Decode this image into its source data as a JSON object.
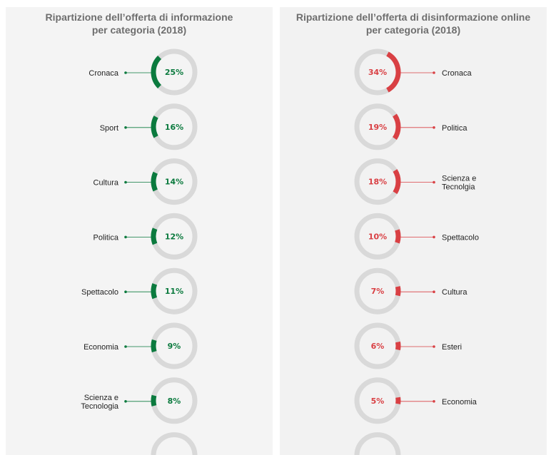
{
  "chart_data": [
    {
      "type": "donut",
      "title": "Ripartizione dell’offerta di informazione\nper categoria (2018)",
      "color": "#0b7a3e",
      "track_color": "#d9d9d9",
      "label_side": "left",
      "categories": [
        "Cronaca",
        "Sport",
        "Cultura",
        "Politica",
        "Spettacolo",
        "Economia",
        "Scienza e\nTecnologia"
      ],
      "values": [
        25,
        16,
        14,
        12,
        11,
        9,
        8
      ],
      "value_labels": [
        "25%",
        "16%",
        "14%",
        "12%",
        "11%",
        "9%",
        "8%"
      ]
    },
    {
      "type": "donut",
      "title": "Ripartizione dell’offerta di disinformazione online\nper categoria  (2018)",
      "color": "#d94044",
      "track_color": "#d9d9d9",
      "label_side": "right",
      "categories": [
        "Cronaca",
        "Politica",
        "Scienza e\nTecnolgia",
        "Spettacolo",
        "Cultura",
        "Esteri",
        "Economia"
      ],
      "values": [
        34,
        19,
        18,
        10,
        7,
        6,
        5
      ],
      "value_labels": [
        "34%",
        "19%",
        "18%",
        "10%",
        "7%",
        "6%",
        "5%"
      ]
    }
  ]
}
